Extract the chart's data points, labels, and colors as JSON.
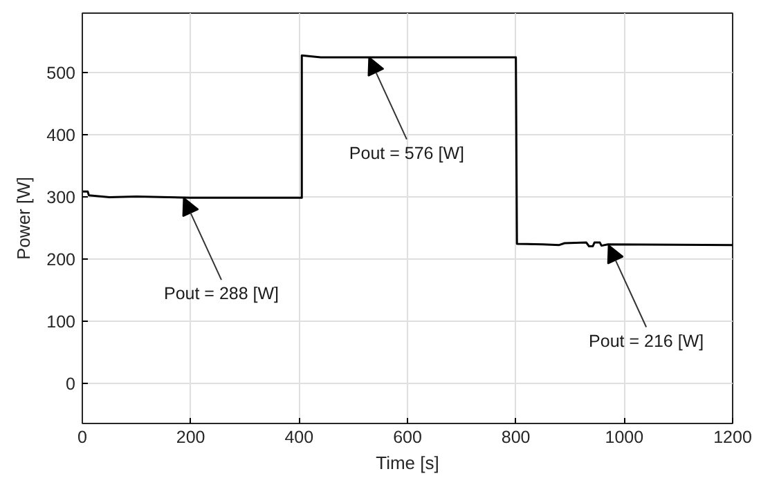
{
  "chart_data": {
    "type": "line",
    "xlabel": "Time [s]",
    "ylabel": "Power [W]",
    "x": [
      0,
      10,
      12,
      50,
      100,
      200,
      405,
      405,
      440,
      500,
      800,
      802,
      850,
      880,
      890,
      930,
      935,
      942,
      945,
      955,
      958,
      970,
      1200
    ],
    "series": [
      {
        "color": "#000000",
        "values": [
          308,
          308,
          302,
          299,
          300,
          298,
          298,
          527,
          524,
          524,
          524,
          224,
          223,
          222,
          225,
          226,
          220,
          220,
          226,
          226,
          221,
          223,
          222
        ]
      }
    ],
    "xlim": [
      0,
      1200
    ],
    "xticks": [
      0,
      200,
      400,
      600,
      800,
      1000,
      1200
    ],
    "ylim": [
      -65,
      595
    ],
    "yticks": [
      0,
      100,
      200,
      300,
      400,
      500
    ],
    "grid": true,
    "marker": "none",
    "line_style": "solid",
    "annotations": [
      {
        "text": "Pout = 288 [W]",
        "x": 187,
        "y": 298
      },
      {
        "text": "Pout = 576 [W]",
        "x": 529,
        "y": 524
      },
      {
        "text": "Pout = 216 [W]",
        "x": 971,
        "y": 222
      }
    ]
  }
}
